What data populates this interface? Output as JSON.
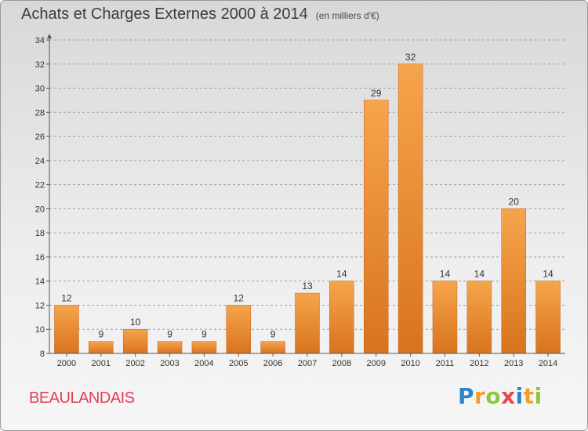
{
  "title": {
    "main": "Achats et Charges Externes 2000 à 2014",
    "unit": "(en milliers d'€)"
  },
  "commune": "BEAULANDAIS",
  "logo": {
    "text": "Proxiti",
    "letters": [
      {
        "ch": "P",
        "color": "#2f84c8"
      },
      {
        "ch": "r",
        "color": "#f0a02a"
      },
      {
        "ch": "o",
        "color": "#8cc53f"
      },
      {
        "ch": "x",
        "color": "#e5484d"
      },
      {
        "ch": "i",
        "color": "#2f84c8"
      },
      {
        "ch": "t",
        "color": "#f0a02a"
      },
      {
        "ch": "i",
        "color": "#8cc53f"
      }
    ]
  },
  "colors": {
    "bar_top": "#f6a54c",
    "bar_bottom": "#d8731f",
    "bar_edge": "#c8661a",
    "axis": "#555555",
    "grid": "#a0a0a0",
    "text": "#333333"
  },
  "chart_data": {
    "type": "bar",
    "categories": [
      "2000",
      "2001",
      "2002",
      "2003",
      "2004",
      "2005",
      "2006",
      "2007",
      "2008",
      "2009",
      "2010",
      "2011",
      "2012",
      "2013",
      "2014"
    ],
    "values": [
      12,
      9,
      10,
      9,
      9,
      12,
      9,
      13,
      14,
      29,
      32,
      14,
      14,
      20,
      14
    ],
    "data_labels": [
      "12",
      "9",
      "10",
      "9",
      "9",
      "12",
      "9",
      "13",
      "14",
      "29",
      "32",
      "14",
      "14",
      "20",
      "14"
    ],
    "ylim": [
      8,
      34
    ],
    "yticks": [
      8,
      10,
      12,
      14,
      16,
      18,
      20,
      22,
      24,
      26,
      28,
      30,
      32,
      34
    ],
    "grid": "horizontal dashed",
    "legend": "none"
  }
}
